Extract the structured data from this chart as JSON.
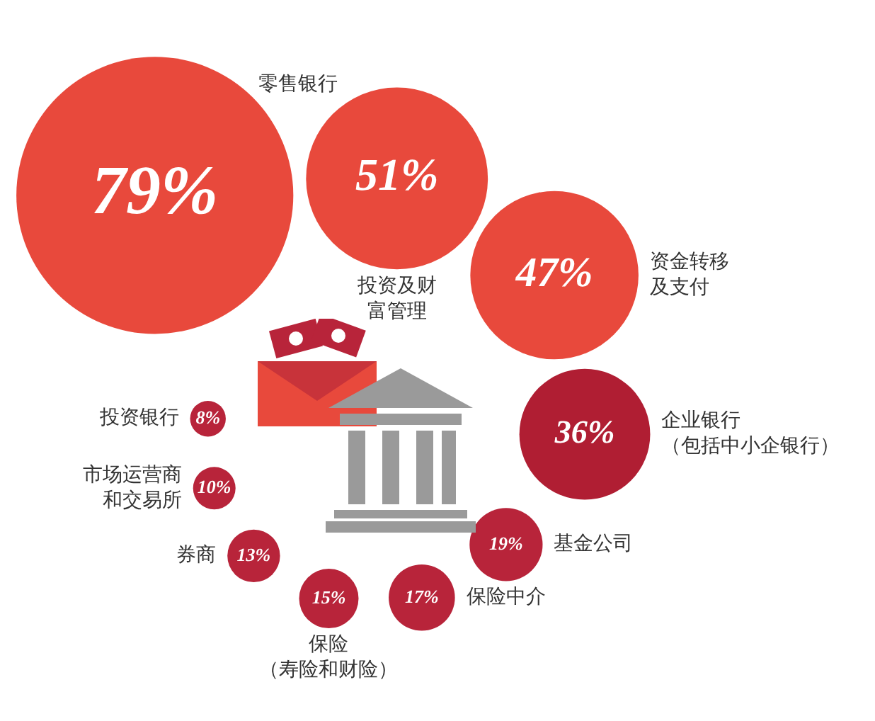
{
  "chart_data": {
    "type": "other",
    "categories": [
      "零售银行",
      "投资及财富管理",
      "资金转移及支付",
      "企业银行（包括中小企银行）",
      "基金公司",
      "保险中介",
      "保险（寿险和财险）",
      "券商",
      "市场运营商和交易所",
      "投资银行"
    ],
    "values": [
      79,
      51,
      47,
      36,
      19,
      17,
      15,
      13,
      10,
      8
    ],
    "value_labels": [
      "79%",
      "51%",
      "47%",
      "36%",
      "19%",
      "17%",
      "15%",
      "13%",
      "10%",
      "8%"
    ],
    "colors": [
      "#e8493c",
      "#e8493c",
      "#e8493c",
      "#b01e33",
      "#b8243a",
      "#b8243a",
      "#b8243a",
      "#b8243a",
      "#b8243a",
      "#b8243a"
    ]
  }
}
